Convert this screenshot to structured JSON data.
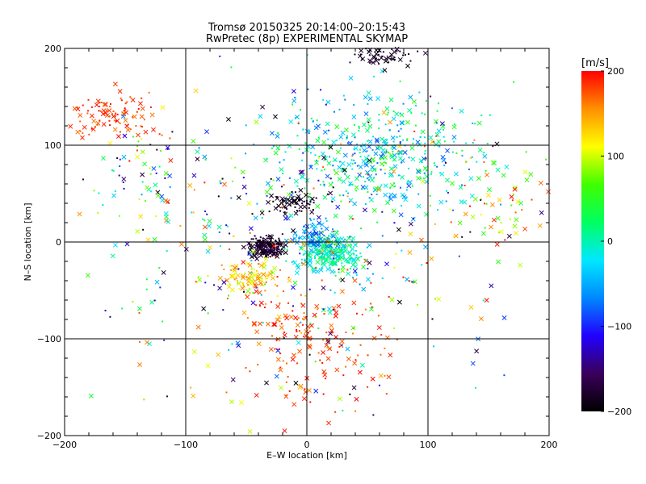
{
  "chart_data": {
    "type": "scatter",
    "title": "Tromsø 20150325 20:14:00–20:15:43",
    "subtitle": "RwPretec (8p) EXPERIMENTAL SKYMAP",
    "xlabel": "E–W location [km]",
    "ylabel": "N–S location [km]",
    "xlim": [
      -200,
      200
    ],
    "ylim": [
      -200,
      200
    ],
    "x_ticks": [
      -200,
      -100,
      0,
      100,
      200
    ],
    "y_ticks": [
      -200,
      -100,
      0,
      100,
      200
    ],
    "x_tick_labels": [
      "−200",
      "−100",
      "0",
      "100",
      "200"
    ],
    "y_tick_labels": [
      "−200",
      "−100",
      "0",
      "100",
      "200"
    ],
    "grid": true,
    "colorbar": {
      "label": "[m/s]",
      "range": [
        -200,
        200
      ],
      "ticks": [
        200,
        100,
        0,
        -100,
        -200
      ],
      "tick_labels": [
        "200",
        "100",
        "0",
        "−100",
        "−200"
      ],
      "colormap": [
        "#000000",
        "#3a005a",
        "#2200ff",
        "#0088ff",
        "#00e8ff",
        "#00ff60",
        "#40ff00",
        "#ffff00",
        "#ff9000",
        "#ff0000"
      ]
    },
    "markers": "x = large echoes, dot = small echoes",
    "clusters": [
      {
        "name": "centre-dark",
        "cx": -33,
        "cy": -5,
        "sx": 10,
        "sy": 7,
        "vmin": -200,
        "vmax": -160,
        "n": 170
      },
      {
        "name": "centre-green",
        "cx": 18,
        "cy": -12,
        "sx": 18,
        "sy": 14,
        "vmin": -40,
        "vmax": 40,
        "n": 260
      },
      {
        "name": "centre-cyan",
        "cx": 10,
        "cy": 5,
        "sx": 15,
        "sy": 12,
        "vmin": -90,
        "vmax": -30,
        "n": 90
      },
      {
        "name": "centre-orange",
        "cx": -45,
        "cy": -35,
        "sx": 20,
        "sy": 12,
        "vmin": 90,
        "vmax": 170,
        "n": 90
      },
      {
        "name": "south-red",
        "cx": 5,
        "cy": -100,
        "sx": 45,
        "sy": 50,
        "vmin": 160,
        "vmax": 200,
        "n": 170
      },
      {
        "name": "arc-dark",
        "cx": -10,
        "cy": 40,
        "sx": 20,
        "sy": 8,
        "vmin": -200,
        "vmax": -170,
        "n": 70
      },
      {
        "name": "north-cloud",
        "cx": 60,
        "cy": 90,
        "sx": 60,
        "sy": 45,
        "vmin": -90,
        "vmax": 60,
        "n": 420
      },
      {
        "name": "north-top-dark",
        "cx": 60,
        "cy": 192,
        "sx": 20,
        "sy": 8,
        "vmin": -200,
        "vmax": -160,
        "n": 60
      },
      {
        "name": "northwest-red",
        "cx": -160,
        "cy": 130,
        "sx": 28,
        "sy": 18,
        "vmin": 160,
        "vmax": 200,
        "n": 100
      },
      {
        "name": "west-mixed",
        "cx": -130,
        "cy": 60,
        "sx": 45,
        "sy": 40,
        "vmin": -200,
        "vmax": 200,
        "n": 70
      },
      {
        "name": "east-mixed",
        "cx": 150,
        "cy": 40,
        "sx": 40,
        "sy": 40,
        "vmin": 40,
        "vmax": 200,
        "n": 60
      },
      {
        "name": "background",
        "cx": 0,
        "cy": 0,
        "sx": 120,
        "sy": 120,
        "vmin": -200,
        "vmax": 200,
        "n": 420
      }
    ]
  }
}
